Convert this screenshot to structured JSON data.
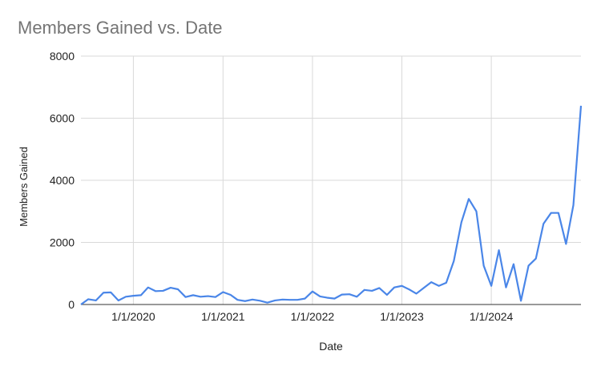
{
  "chart_data": {
    "type": "line",
    "title": "Members Gained vs. Date",
    "x_label": "Date",
    "y_label": "Members Gained",
    "x": [
      "6/1/2019",
      "7/1/2019",
      "8/1/2019",
      "9/1/2019",
      "10/1/2019",
      "11/1/2019",
      "12/1/2019",
      "1/1/2020",
      "2/1/2020",
      "3/1/2020",
      "4/1/2020",
      "5/1/2020",
      "6/1/2020",
      "7/1/2020",
      "8/1/2020",
      "9/1/2020",
      "10/1/2020",
      "11/1/2020",
      "12/1/2020",
      "1/1/2021",
      "2/1/2021",
      "3/1/2021",
      "4/1/2021",
      "5/1/2021",
      "6/1/2021",
      "7/1/2021",
      "8/1/2021",
      "9/1/2021",
      "10/1/2021",
      "11/1/2021",
      "12/1/2021",
      "1/1/2022",
      "2/1/2022",
      "3/1/2022",
      "4/1/2022",
      "5/1/2022",
      "6/1/2022",
      "7/1/2022",
      "8/1/2022",
      "9/1/2022",
      "10/1/2022",
      "11/1/2022",
      "12/1/2022",
      "1/1/2023",
      "2/1/2023",
      "3/1/2023",
      "4/1/2023",
      "5/1/2023",
      "6/1/2023",
      "7/1/2023",
      "8/1/2023",
      "9/1/2023",
      "10/1/2023",
      "11/1/2023",
      "12/1/2023",
      "1/1/2024",
      "2/1/2024",
      "3/1/2024",
      "4/1/2024",
      "5/1/2024",
      "6/1/2024",
      "7/1/2024",
      "8/1/2024",
      "9/1/2024",
      "10/1/2024",
      "11/1/2024",
      "12/1/2024",
      "1/1/2025"
    ],
    "series": [
      {
        "name": "Members Gained",
        "color": "#4a86e8",
        "values": [
          0,
          170,
          130,
          380,
          390,
          130,
          250,
          280,
          300,
          550,
          430,
          440,
          540,
          490,
          240,
          300,
          250,
          270,
          240,
          400,
          310,
          150,
          110,
          160,
          120,
          60,
          130,
          160,
          150,
          150,
          190,
          420,
          260,
          220,
          190,
          320,
          330,
          250,
          470,
          440,
          530,
          310,
          550,
          600,
          480,
          350,
          540,
          720,
          600,
          700,
          1400,
          2650,
          3400,
          3000,
          1250,
          600,
          1750,
          550,
          1300,
          120,
          1250,
          1480,
          2600,
          2950,
          2950,
          1950,
          3200,
          6400
        ]
      }
    ],
    "xlim": [
      "6/1/2019",
      "1/1/2025"
    ],
    "xticks": [
      "1/1/2020",
      "1/1/2021",
      "1/1/2022",
      "1/1/2023",
      "1/1/2024"
    ],
    "ylim": [
      0,
      8000
    ],
    "yticks": [
      0,
      2000,
      4000,
      6000,
      8000
    ],
    "grid": true
  }
}
